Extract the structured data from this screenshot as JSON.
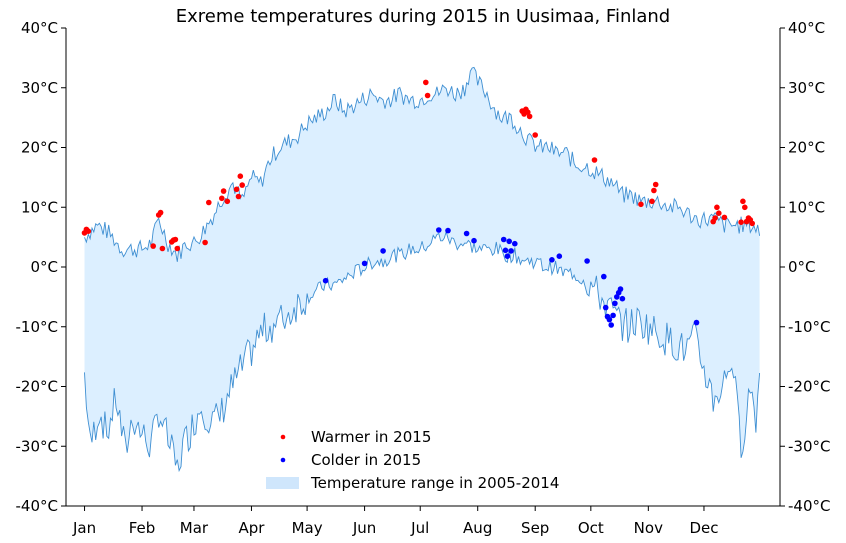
{
  "chart_data": {
    "type": "line",
    "title": "Exreme temperatures during 2015 in Uusimaa, Finland",
    "ylim": [
      -40,
      40
    ],
    "yticks": [
      -40,
      -30,
      -20,
      -10,
      0,
      10,
      20,
      30,
      40
    ],
    "ytick_suffix": "°C",
    "xlim": [
      -10,
      375
    ],
    "month_ticks": [
      {
        "day": 0,
        "label": "Jan"
      },
      {
        "day": 31,
        "label": "Feb"
      },
      {
        "day": 59,
        "label": "Mar"
      },
      {
        "day": 90,
        "label": "Apr"
      },
      {
        "day": 120,
        "label": "May"
      },
      {
        "day": 151,
        "label": "Jun"
      },
      {
        "day": 181,
        "label": "Jul"
      },
      {
        "day": 212,
        "label": "Aug"
      },
      {
        "day": 243,
        "label": "Sep"
      },
      {
        "day": 273,
        "label": "Oct"
      },
      {
        "day": 304,
        "label": "Nov"
      },
      {
        "day": 334,
        "label": "Dec"
      }
    ],
    "grid": false,
    "legend_position": "lower-center",
    "colors": {
      "range_fill": "#dcefff",
      "range_line": "#3f8fd2",
      "warmer": "#ff0000",
      "colder": "#0000ff"
    },
    "range_series": {
      "name": "Temperature range in 2005-2014",
      "high_anchors": [
        [
          0,
          5
        ],
        [
          3,
          6
        ],
        [
          7,
          7
        ],
        [
          12,
          6
        ],
        [
          15,
          5
        ],
        [
          20,
          3
        ],
        [
          26,
          3
        ],
        [
          31,
          3
        ],
        [
          36,
          4
        ],
        [
          40,
          8
        ],
        [
          45,
          4
        ],
        [
          50,
          2
        ],
        [
          55,
          4
        ],
        [
          59,
          4
        ],
        [
          64,
          6
        ],
        [
          70,
          9
        ],
        [
          75,
          12
        ],
        [
          80,
          14
        ],
        [
          85,
          11
        ],
        [
          90,
          15
        ],
        [
          95,
          14
        ],
        [
          100,
          18
        ],
        [
          105,
          20
        ],
        [
          110,
          21
        ],
        [
          115,
          22
        ],
        [
          120,
          24
        ],
        [
          125,
          25
        ],
        [
          130,
          26
        ],
        [
          135,
          28
        ],
        [
          140,
          26
        ],
        [
          145,
          27
        ],
        [
          150,
          28
        ],
        [
          155,
          29
        ],
        [
          160,
          28
        ],
        [
          165,
          28
        ],
        [
          170,
          29
        ],
        [
          175,
          28
        ],
        [
          181,
          28
        ],
        [
          186,
          29
        ],
        [
          190,
          29
        ],
        [
          195,
          30
        ],
        [
          200,
          29
        ],
        [
          205,
          30
        ],
        [
          208,
          33
        ],
        [
          212,
          31
        ],
        [
          217,
          29
        ],
        [
          220,
          27
        ],
        [
          225,
          25
        ],
        [
          230,
          25
        ],
        [
          235,
          23
        ],
        [
          240,
          21
        ],
        [
          245,
          20
        ],
        [
          250,
          20
        ],
        [
          255,
          19
        ],
        [
          260,
          19
        ],
        [
          265,
          17
        ],
        [
          270,
          17
        ],
        [
          275,
          16
        ],
        [
          280,
          15
        ],
        [
          285,
          14
        ],
        [
          290,
          12
        ],
        [
          295,
          12
        ],
        [
          300,
          11
        ],
        [
          304,
          11
        ],
        [
          310,
          11
        ],
        [
          315,
          10
        ],
        [
          320,
          10
        ],
        [
          325,
          9
        ],
        [
          330,
          8
        ],
        [
          334,
          8
        ],
        [
          340,
          8
        ],
        [
          345,
          7
        ],
        [
          350,
          7
        ],
        [
          355,
          7
        ],
        [
          360,
          7
        ],
        [
          364,
          6
        ]
      ],
      "low_anchors": [
        [
          0,
          -18
        ],
        [
          3,
          -30
        ],
        [
          8,
          -24
        ],
        [
          12,
          -28
        ],
        [
          17,
          -22
        ],
        [
          22,
          -31
        ],
        [
          26,
          -25
        ],
        [
          31,
          -28
        ],
        [
          36,
          -30
        ],
        [
          40,
          -24
        ],
        [
          45,
          -29
        ],
        [
          50,
          -34
        ],
        [
          53,
          -30
        ],
        [
          59,
          -26
        ],
        [
          63,
          -23
        ],
        [
          68,
          -26
        ],
        [
          73,
          -25
        ],
        [
          78,
          -21
        ],
        [
          83,
          -18
        ],
        [
          90,
          -14
        ],
        [
          95,
          -11
        ],
        [
          100,
          -10
        ],
        [
          105,
          -9
        ],
        [
          110,
          -8
        ],
        [
          115,
          -6
        ],
        [
          120,
          -5
        ],
        [
          125,
          -4
        ],
        [
          130,
          -3
        ],
        [
          135,
          -3
        ],
        [
          140,
          -2
        ],
        [
          145,
          -1
        ],
        [
          151,
          0
        ],
        [
          156,
          1
        ],
        [
          161,
          1
        ],
        [
          166,
          2
        ],
        [
          171,
          2
        ],
        [
          176,
          3
        ],
        [
          181,
          3
        ],
        [
          186,
          4
        ],
        [
          190,
          5
        ],
        [
          195,
          5
        ],
        [
          200,
          4
        ],
        [
          205,
          4
        ],
        [
          212,
          3
        ],
        [
          217,
          3
        ],
        [
          222,
          3
        ],
        [
          227,
          2
        ],
        [
          232,
          2
        ],
        [
          237,
          1
        ],
        [
          243,
          1
        ],
        [
          248,
          0
        ],
        [
          253,
          0
        ],
        [
          258,
          -1
        ],
        [
          263,
          -1
        ],
        [
          268,
          -2
        ],
        [
          273,
          -3
        ],
        [
          278,
          -5
        ],
        [
          283,
          -7
        ],
        [
          288,
          -9
        ],
        [
          293,
          -10
        ],
        [
          298,
          -9
        ],
        [
          304,
          -10
        ],
        [
          309,
          -11
        ],
        [
          314,
          -12
        ],
        [
          319,
          -13
        ],
        [
          324,
          -14
        ],
        [
          329,
          -12
        ],
        [
          334,
          -17
        ],
        [
          339,
          -22
        ],
        [
          344,
          -20
        ],
        [
          349,
          -15
        ],
        [
          354,
          -30
        ],
        [
          359,
          -20
        ],
        [
          362,
          -25
        ],
        [
          364,
          -18
        ]
      ]
    },
    "series": [
      {
        "name": "Warmer in 2015",
        "points": [
          [
            0,
            5.7
          ],
          [
            1,
            6.3
          ],
          [
            2,
            6.0
          ],
          [
            37,
            3.5
          ],
          [
            40,
            8.7
          ],
          [
            41,
            9.1
          ],
          [
            42,
            3.1
          ],
          [
            47,
            4.2
          ],
          [
            48,
            4.5
          ],
          [
            49,
            4.6
          ],
          [
            50,
            3.1
          ],
          [
            65,
            4.1
          ],
          [
            67,
            10.8
          ],
          [
            74,
            11.5
          ],
          [
            75,
            12.7
          ],
          [
            77,
            11.0
          ],
          [
            82,
            13.0
          ],
          [
            83,
            11.8
          ],
          [
            84,
            15.2
          ],
          [
            85,
            13.7
          ],
          [
            184,
            30.9
          ],
          [
            185,
            28.7
          ],
          [
            236,
            26.1
          ],
          [
            237,
            25.6
          ],
          [
            238,
            26.4
          ],
          [
            239,
            25.9
          ],
          [
            240,
            25.2
          ],
          [
            243,
            22.1
          ],
          [
            275,
            17.9
          ],
          [
            300,
            10.5
          ],
          [
            306,
            11.0
          ],
          [
            307,
            12.8
          ],
          [
            308,
            13.8
          ],
          [
            339,
            7.6
          ],
          [
            340,
            8.2
          ],
          [
            341,
            10.0
          ],
          [
            342,
            9.0
          ],
          [
            345,
            8.3
          ],
          [
            354,
            7.5
          ],
          [
            355,
            11.0
          ],
          [
            356,
            10.0
          ],
          [
            357,
            7.6
          ],
          [
            358,
            8.2
          ],
          [
            359,
            7.9
          ],
          [
            360,
            7.3
          ]
        ]
      },
      {
        "name": "Colder in 2015",
        "points": [
          [
            130,
            -2.3
          ],
          [
            151,
            0.6
          ],
          [
            161,
            2.7
          ],
          [
            191,
            6.2
          ],
          [
            196,
            6.1
          ],
          [
            206,
            5.6
          ],
          [
            210,
            4.4
          ],
          [
            226,
            4.6
          ],
          [
            227,
            2.8
          ],
          [
            228,
            1.8
          ],
          [
            229,
            4.3
          ],
          [
            230,
            2.7
          ],
          [
            232,
            3.9
          ],
          [
            252,
            1.2
          ],
          [
            256,
            1.8
          ],
          [
            271,
            1.0
          ],
          [
            280,
            -1.6
          ],
          [
            281,
            -6.8
          ],
          [
            282,
            -8.3
          ],
          [
            283,
            -8.8
          ],
          [
            284,
            -9.7
          ],
          [
            285,
            -8.1
          ],
          [
            286,
            -6.1
          ],
          [
            287,
            -5.0
          ],
          [
            288,
            -4.3
          ],
          [
            289,
            -3.7
          ],
          [
            290,
            -5.3
          ],
          [
            330,
            -9.3
          ]
        ]
      }
    ]
  }
}
